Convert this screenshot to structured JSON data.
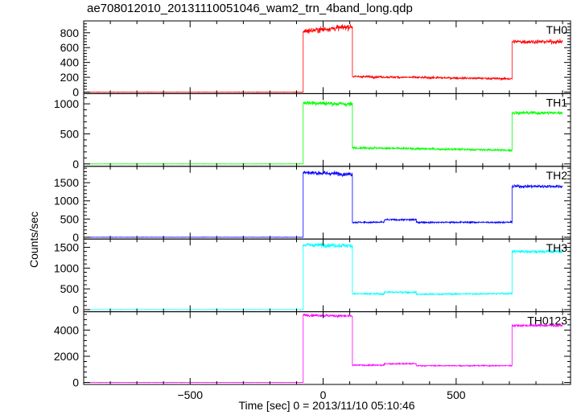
{
  "title": "ae708012010_20131110051046_wam2_trn_4band_long.qdp",
  "chart_data": {
    "type": "line",
    "title": "ae708012010_20131110051046_wam2_trn_4band_long.qdp",
    "xlabel": "Time [sec] 0 = 2013/11/10 05:10:46",
    "ylabel": "Counts/sec",
    "xlim": [
      -900,
      930
    ],
    "x_ticks": [
      -500,
      0,
      500
    ],
    "x_tick_labels": [
      "−500",
      "0",
      "500"
    ],
    "grid": false,
    "panels": [
      {
        "name": "TH0",
        "color": "#ff0000",
        "ylim": [
          -20,
          960
        ],
        "y_ticks": [
          0,
          200,
          400,
          600,
          800
        ],
        "segments": [
          {
            "t0": -900,
            "t1": -75,
            "mean": 0,
            "noise": 2
          },
          {
            "t0": -75,
            "t1": 110,
            "mean": 820,
            "noise": 30,
            "slope": 0.35
          },
          {
            "t0": 110,
            "t1": 710,
            "mean": 210,
            "noise": 12,
            "slope": -0.05
          },
          {
            "t0": 710,
            "t1": 900,
            "mean": 680,
            "noise": 22
          }
        ]
      },
      {
        "name": "TH1",
        "color": "#00ff00",
        "ylim": [
          -40,
          1170
        ],
        "y_ticks": [
          0,
          500,
          1000
        ],
        "segments": [
          {
            "t0": -900,
            "t1": -75,
            "mean": 0,
            "noise": 2
          },
          {
            "t0": -75,
            "t1": 110,
            "mean": 1020,
            "noise": 30,
            "slope": -0.15
          },
          {
            "t0": 110,
            "t1": 710,
            "mean": 270,
            "noise": 14,
            "slope": -0.07
          },
          {
            "t0": 710,
            "t1": 900,
            "mean": 850,
            "noise": 22
          }
        ]
      },
      {
        "name": "TH2",
        "color": "#0000ff",
        "ylim": [
          -50,
          1950
        ],
        "y_ticks": [
          0,
          500,
          1000,
          1500
        ],
        "segments": [
          {
            "t0": -900,
            "t1": -75,
            "mean": 0,
            "noise": 3
          },
          {
            "t0": -75,
            "t1": 110,
            "mean": 1780,
            "noise": 45,
            "slope": -0.25
          },
          {
            "t0": 110,
            "t1": 230,
            "mean": 410,
            "noise": 18
          },
          {
            "t0": 230,
            "t1": 350,
            "mean": 480,
            "noise": 20
          },
          {
            "t0": 350,
            "t1": 710,
            "mean": 410,
            "noise": 18
          },
          {
            "t0": 710,
            "t1": 900,
            "mean": 1400,
            "noise": 35
          }
        ]
      },
      {
        "name": "TH3",
        "color": "#00ffff",
        "ylim": [
          -50,
          1700
        ],
        "y_ticks": [
          0,
          500,
          1000,
          1500
        ],
        "segments": [
          {
            "t0": -900,
            "t1": -75,
            "mean": 0,
            "noise": 3
          },
          {
            "t0": -75,
            "t1": 110,
            "mean": 1560,
            "noise": 40,
            "slope": -0.1
          },
          {
            "t0": 110,
            "t1": 230,
            "mean": 380,
            "noise": 18
          },
          {
            "t0": 230,
            "t1": 350,
            "mean": 420,
            "noise": 18
          },
          {
            "t0": 350,
            "t1": 710,
            "mean": 370,
            "noise": 16,
            "slope": 0.05
          },
          {
            "t0": 710,
            "t1": 900,
            "mean": 1400,
            "noise": 35
          }
        ]
      },
      {
        "name": "TH0123",
        "color": "#ff00ff",
        "ylim": [
          -150,
          5400
        ],
        "y_ticks": [
          0,
          2000,
          4000
        ],
        "segments": [
          {
            "t0": -900,
            "t1": -75,
            "mean": 0,
            "noise": 8
          },
          {
            "t0": -75,
            "t1": 110,
            "mean": 5150,
            "noise": 80,
            "slope": -0.5
          },
          {
            "t0": 110,
            "t1": 230,
            "mean": 1320,
            "noise": 40
          },
          {
            "t0": 230,
            "t1": 350,
            "mean": 1430,
            "noise": 40
          },
          {
            "t0": 350,
            "t1": 710,
            "mean": 1280,
            "noise": 35
          },
          {
            "t0": 710,
            "t1": 900,
            "mean": 4350,
            "noise": 70
          }
        ]
      }
    ]
  }
}
